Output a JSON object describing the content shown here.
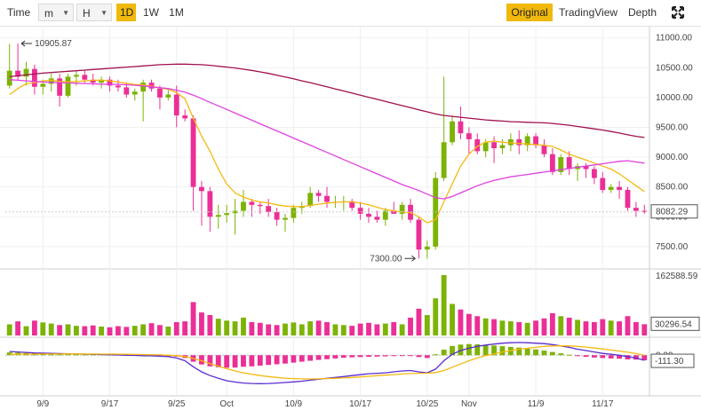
{
  "toolbar": {
    "time_label": "Time",
    "minute_select": "m",
    "hour_select": "H",
    "intervals": [
      "1D",
      "1W",
      "1M"
    ],
    "active_interval": "1D",
    "views": [
      "Original",
      "TradingView",
      "Depth"
    ],
    "active_view": "Original",
    "accent_color": "#f0b90b"
  },
  "chart_data": {
    "type": "candlestick",
    "x_ticks": [
      "9/9",
      "9/17",
      "9/25",
      "Oct",
      "10/9",
      "10/17",
      "10/25",
      "Nov",
      "11/9",
      "11/17"
    ],
    "price_axis": {
      "ticks": [
        "11000.00",
        "10500.00",
        "10000.00",
        "9500.00",
        "9000.00",
        "8500.00",
        "8000.00",
        "7500.00"
      ],
      "ylim": [
        7200,
        11100
      ],
      "current_price_label": "8082.29",
      "current_price": 8082.29
    },
    "annotations": {
      "high": {
        "label": "10905.87",
        "value": 10905.87
      },
      "low": {
        "label": "7300.00",
        "value": 7300.0
      }
    },
    "candles": [
      [
        10200,
        10900,
        10150,
        10450
      ],
      [
        10450,
        10905.87,
        10300,
        10350
      ],
      [
        10350,
        10600,
        10200,
        10480
      ],
      [
        10480,
        10550,
        10050,
        10180
      ],
      [
        10180,
        10300,
        10050,
        10230
      ],
      [
        10230,
        10400,
        10100,
        10320
      ],
      [
        10320,
        10400,
        9850,
        10030
      ],
      [
        10030,
        10400,
        10000,
        10350
      ],
      [
        10350,
        10450,
        10200,
        10380
      ],
      [
        10380,
        10450,
        10250,
        10300
      ],
      [
        10300,
        10400,
        10200,
        10250
      ],
      [
        10250,
        10350,
        10150,
        10300
      ],
      [
        10300,
        10350,
        10100,
        10200
      ],
      [
        10200,
        10300,
        10100,
        10170
      ],
      [
        10170,
        10250,
        10000,
        10050
      ],
      [
        10050,
        10150,
        9950,
        10100
      ],
      [
        10100,
        10300,
        9600,
        10250
      ],
      [
        10250,
        10300,
        10100,
        10150
      ],
      [
        10150,
        10200,
        9800,
        10000
      ],
      [
        10000,
        10150,
        9950,
        10050
      ],
      [
        10050,
        10200,
        9500,
        9700
      ],
      [
        9700,
        9800,
        9600,
        9650
      ],
      [
        9650,
        9700,
        8100,
        8500
      ],
      [
        8500,
        8600,
        7850,
        8430
      ],
      [
        8430,
        8500,
        7750,
        8000
      ],
      [
        8000,
        8200,
        7800,
        8030
      ],
      [
        8030,
        8200,
        7900,
        8060
      ],
      [
        8060,
        8300,
        7700,
        8100
      ],
      [
        8100,
        8450,
        8000,
        8250
      ],
      [
        8250,
        8300,
        8000,
        8200
      ],
      [
        8200,
        8250,
        8050,
        8180
      ],
      [
        8180,
        8300,
        8000,
        8080
      ],
      [
        8080,
        8150,
        7850,
        7950
      ],
      [
        7950,
        8050,
        7750,
        7980
      ],
      [
        7980,
        8200,
        7900,
        8150
      ],
      [
        8150,
        8250,
        8050,
        8180
      ],
      [
        8180,
        8500,
        8150,
        8400
      ],
      [
        8400,
        8450,
        8250,
        8350
      ],
      [
        8350,
        8500,
        8150,
        8250
      ],
      [
        8250,
        8350,
        8150,
        8250
      ],
      [
        8250,
        8350,
        8100,
        8260
      ],
      [
        8260,
        8300,
        8100,
        8150
      ],
      [
        8150,
        8250,
        7950,
        8050
      ],
      [
        8050,
        8150,
        7900,
        8000
      ],
      [
        8000,
        8100,
        7900,
        7950
      ],
      [
        7950,
        8150,
        7850,
        8100
      ],
      [
        8100,
        8250,
        8050,
        8050
      ],
      [
        8050,
        8250,
        7950,
        8200
      ],
      [
        8200,
        8300,
        7900,
        7950
      ],
      [
        7950,
        8000,
        7300,
        7450
      ],
      [
        7450,
        7600,
        7300,
        7500
      ],
      [
        7500,
        8750,
        7450,
        8650
      ],
      [
        8650,
        10350,
        8600,
        9250
      ],
      [
        9250,
        9700,
        9200,
        9600
      ],
      [
        9600,
        9850,
        9300,
        9400
      ],
      [
        9400,
        9500,
        9050,
        9300
      ],
      [
        9300,
        9400,
        9050,
        9100
      ],
      [
        9100,
        9300,
        9000,
        9250
      ],
      [
        9250,
        9350,
        8900,
        9150
      ],
      [
        9150,
        9300,
        9050,
        9200
      ],
      [
        9200,
        9400,
        9100,
        9300
      ],
      [
        9300,
        9450,
        9050,
        9200
      ],
      [
        9200,
        9400,
        9100,
        9350
      ],
      [
        9350,
        9400,
        9150,
        9200
      ],
      [
        9200,
        9300,
        9000,
        9050
      ],
      [
        9050,
        9150,
        8700,
        8750
      ],
      [
        8750,
        9050,
        8700,
        9000
      ],
      [
        9000,
        9100,
        8700,
        8800
      ],
      [
        8800,
        8900,
        8600,
        8850
      ],
      [
        8850,
        8900,
        8650,
        8800
      ],
      [
        8800,
        8850,
        8550,
        8650
      ],
      [
        8650,
        8750,
        8400,
        8450
      ],
      [
        8450,
        8550,
        8400,
        8500
      ],
      [
        8500,
        8600,
        8300,
        8450
      ],
      [
        8450,
        8500,
        8100,
        8150
      ],
      [
        8150,
        8250,
        8000,
        8100
      ],
      [
        8100,
        8200,
        8050,
        8082.29
      ]
    ],
    "ma_short": [
      10050,
      10150,
      10230,
      10250,
      10280,
      10290,
      10270,
      10260,
      10270,
      10280,
      10290,
      10290,
      10280,
      10260,
      10240,
      10220,
      10210,
      10190,
      10160,
      10140,
      10080,
      9980,
      9650,
      9350,
      9100,
      8800,
      8550,
      8400,
      8330,
      8280,
      8250,
      8230,
      8200,
      8180,
      8170,
      8170,
      8190,
      8210,
      8230,
      8240,
      8250,
      8250,
      8230,
      8200,
      8160,
      8120,
      8100,
      8080,
      8070,
      8000,
      7900,
      7950,
      8250,
      8550,
      8850,
      9050,
      9180,
      9250,
      9270,
      9250,
      9240,
      9230,
      9220,
      9210,
      9200,
      9180,
      9120,
      9050,
      9000,
      8950,
      8900,
      8850,
      8800,
      8720,
      8620,
      8520,
      8420
    ],
    "ma_mid": [
      10300,
      10290,
      10280,
      10270,
      10260,
      10255,
      10250,
      10245,
      10240,
      10235,
      10230,
      10225,
      10222,
      10220,
      10215,
      10205,
      10195,
      10180,
      10165,
      10150,
      10120,
      10090,
      10040,
      9980,
      9920,
      9860,
      9800,
      9740,
      9680,
      9620,
      9560,
      9500,
      9440,
      9380,
      9320,
      9260,
      9200,
      9140,
      9080,
      9020,
      8960,
      8900,
      8840,
      8780,
      8720,
      8660,
      8600,
      8540,
      8490,
      8440,
      8380,
      8320,
      8300,
      8340,
      8400,
      8460,
      8520,
      8570,
      8610,
      8640,
      8670,
      8690,
      8710,
      8730,
      8750,
      8770,
      8790,
      8810,
      8830,
      8850,
      8870,
      8890,
      8910,
      8930,
      8940,
      8920,
      8900
    ],
    "ma_long": [
      10350,
      10365,
      10380,
      10395,
      10410,
      10420,
      10430,
      10440,
      10450,
      10460,
      10470,
      10480,
      10490,
      10500,
      10510,
      10520,
      10530,
      10540,
      10550,
      10555,
      10560,
      10560,
      10555,
      10550,
      10540,
      10525,
      10510,
      10495,
      10475,
      10455,
      10430,
      10405,
      10375,
      10345,
      10315,
      10280,
      10250,
      10215,
      10180,
      10145,
      10110,
      10075,
      10040,
      10005,
      9970,
      9935,
      9900,
      9865,
      9830,
      9795,
      9760,
      9725,
      9700,
      9685,
      9670,
      9655,
      9640,
      9625,
      9615,
      9605,
      9595,
      9590,
      9585,
      9580,
      9575,
      9565,
      9550,
      9535,
      9515,
      9495,
      9475,
      9455,
      9430,
      9405,
      9375,
      9350,
      9330
    ],
    "volume_axis": {
      "ticks": [
        "162588.59"
      ],
      "current_label": "30296.54",
      "max": 162588.59,
      "current": 30296.54
    },
    "volume": [
      30000,
      38000,
      25000,
      40000,
      35000,
      32000,
      28000,
      30000,
      26000,
      25000,
      27000,
      24000,
      22000,
      25000,
      23000,
      26000,
      30000,
      33000,
      28000,
      24000,
      36000,
      38000,
      90000,
      62000,
      55000,
      45000,
      40000,
      38000,
      48000,
      36000,
      34000,
      30000,
      28000,
      32000,
      35000,
      30000,
      38000,
      40000,
      36000,
      30000,
      28000,
      26000,
      32000,
      34000,
      30000,
      32000,
      36000,
      30000,
      48000,
      72000,
      55000,
      100000,
      162588.59,
      85000,
      70000,
      58000,
      52000,
      46000,
      44000,
      40000,
      38000,
      36000,
      34000,
      40000,
      46000,
      60000,
      52000,
      48000,
      42000,
      38000,
      36000,
      44000,
      40000,
      38000,
      52000,
      36000,
      30296.54
    ],
    "macd_axis": {
      "ticks": [
        "0.00"
      ],
      "current_label": "-111.30",
      "current": -111.3,
      "ylim": [
        -800,
        350
      ]
    },
    "macd_hist": [
      60,
      55,
      50,
      45,
      42,
      40,
      38,
      34,
      30,
      26,
      22,
      20,
      18,
      15,
      12,
      10,
      6,
      2,
      -4,
      -10,
      -30,
      -60,
      -140,
      -200,
      -240,
      -260,
      -270,
      -265,
      -250,
      -240,
      -225,
      -210,
      -195,
      -180,
      -160,
      -140,
      -120,
      -100,
      -85,
      -70,
      -55,
      -45,
      -40,
      -35,
      -30,
      -25,
      -15,
      -5,
      -15,
      -40,
      -60,
      20,
      120,
      200,
      230,
      240,
      235,
      225,
      210,
      195,
      180,
      165,
      145,
      125,
      100,
      70,
      40,
      10,
      -15,
      -35,
      -50,
      -60,
      -70,
      -75,
      -90,
      -95,
      -110
    ],
    "macd_line": [
      80,
      70,
      60,
      50,
      45,
      40,
      36,
      32,
      28,
      24,
      20,
      15,
      10,
      5,
      0,
      -5,
      -10,
      -15,
      -20,
      -30,
      -60,
      -120,
      -250,
      -360,
      -440,
      -500,
      -550,
      -580,
      -600,
      -610,
      -615,
      -610,
      -600,
      -590,
      -575,
      -560,
      -540,
      -520,
      -500,
      -480,
      -460,
      -440,
      -420,
      -400,
      -390,
      -380,
      -360,
      -340,
      -330,
      -360,
      -380,
      -300,
      -120,
      20,
      100,
      150,
      190,
      220,
      240,
      260,
      270,
      275,
      270,
      260,
      250,
      230,
      200,
      170,
      130,
      100,
      70,
      40,
      20,
      0,
      -30,
      -60,
      -110
    ],
    "signal_line": [
      20,
      22,
      24,
      25,
      26,
      27,
      27,
      28,
      28,
      27,
      26,
      25,
      24,
      22,
      20,
      17,
      14,
      10,
      6,
      0,
      -10,
      -30,
      -70,
      -120,
      -180,
      -240,
      -290,
      -340,
      -380,
      -410,
      -440,
      -460,
      -480,
      -495,
      -505,
      -510,
      -512,
      -510,
      -505,
      -500,
      -490,
      -480,
      -468,
      -455,
      -442,
      -430,
      -418,
      -405,
      -395,
      -390,
      -388,
      -375,
      -330,
      -260,
      -190,
      -120,
      -60,
      -10,
      30,
      70,
      100,
      130,
      150,
      170,
      190,
      200,
      205,
      200,
      190,
      175,
      155,
      135,
      112,
      90,
      65,
      35,
      0
    ]
  }
}
